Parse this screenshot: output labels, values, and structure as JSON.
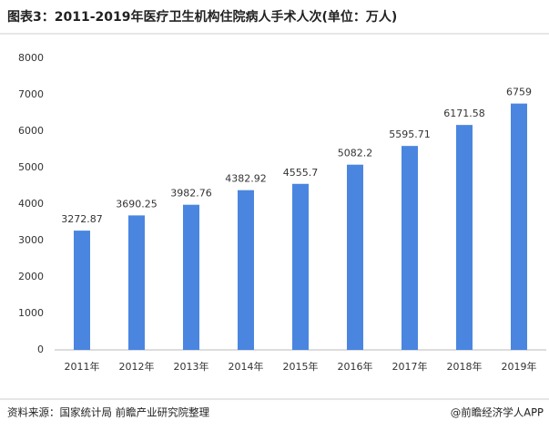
{
  "chart_data": {
    "type": "bar",
    "title": "图表3：2011-2019年医疗卫生机构住院病人手术人次(单位：万人)",
    "categories": [
      "2011年",
      "2012年",
      "2013年",
      "2014年",
      "2015年",
      "2016年",
      "2017年",
      "2018年",
      "2019年"
    ],
    "values": [
      3272.87,
      3690.25,
      3982.76,
      4382.92,
      4555.7,
      5082.2,
      5595.71,
      6171.58,
      6759
    ],
    "color": "#4a86e0",
    "ylim": [
      0,
      8000
    ],
    "yticks": [
      0,
      1000,
      2000,
      3000,
      4000,
      5000,
      6000,
      7000,
      8000
    ],
    "grid": false,
    "source": "资料来源：国家统计局 前瞻产业研究院整理",
    "credit": "@前瞻经济学人APP"
  }
}
